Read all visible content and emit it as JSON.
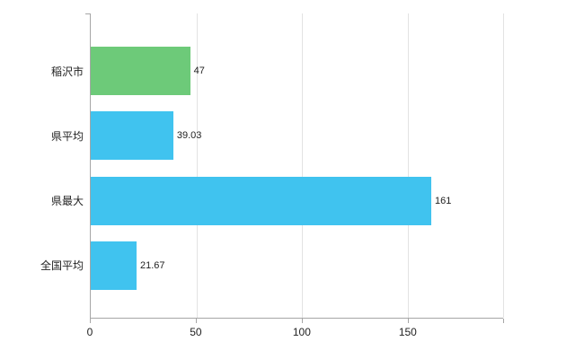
{
  "chart_data": {
    "type": "bar",
    "orientation": "horizontal",
    "title": "",
    "categories": [
      "稲沢市",
      "県平均",
      "県最大",
      "全国平均"
    ],
    "values": [
      47,
      39.03,
      161,
      21.67
    ],
    "value_labels": [
      "47",
      "39.03",
      "161",
      "21.67"
    ],
    "bar_colors": [
      "#6dca79",
      "#40c3ef",
      "#40c3ef",
      "#40c3ef"
    ],
    "xlim": [
      0,
      195
    ],
    "x_ticks": [
      0,
      50,
      100,
      150
    ],
    "x_tick_labels": [
      "0",
      "50",
      "100",
      "150"
    ],
    "grid": true,
    "legend": false,
    "axis_color": "#a6a6a6",
    "grid_color": "#e3e3e3",
    "text_color": "#222222",
    "background_color": "#ffffff"
  }
}
